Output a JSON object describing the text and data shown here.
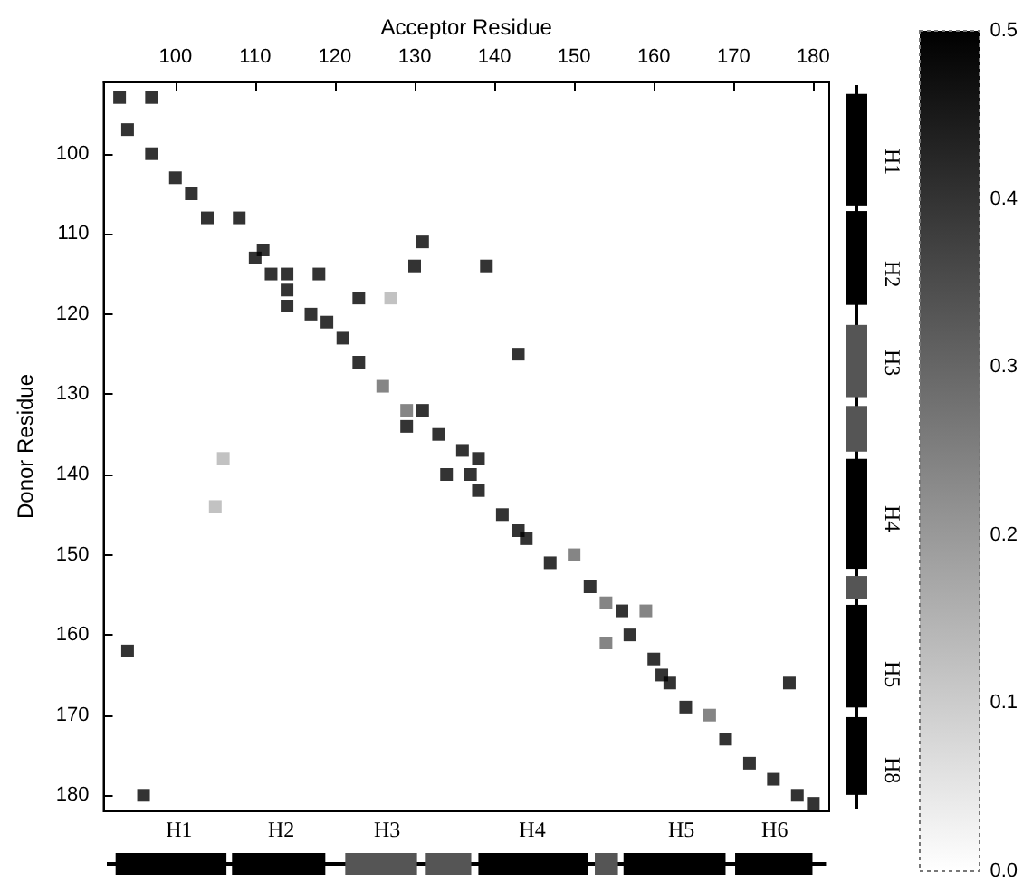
{
  "chart_data": {
    "type": "scatter",
    "xlabel": "Acceptor Residue",
    "ylabel": "Donor Residue",
    "xlim": [
      91,
      182
    ],
    "ylim": [
      182,
      91
    ],
    "xticks": [
      100,
      110,
      120,
      130,
      140,
      150,
      160,
      170,
      180
    ],
    "yticks": [
      100,
      110,
      120,
      130,
      140,
      150,
      160,
      170,
      180
    ],
    "clim": [
      0,
      0.5
    ],
    "cticks": [
      {
        "value": 0,
        "label": "0.0"
      },
      {
        "value": 0.1,
        "label": "0.1"
      },
      {
        "value": 0.2,
        "label": "0.2"
      },
      {
        "value": 0.3,
        "label": "0.3"
      },
      {
        "value": 0.4,
        "label": "0.4"
      },
      {
        "value": 0.5,
        "label": "0.5"
      }
    ],
    "x": [
      93,
      97,
      94,
      97,
      100,
      102,
      104,
      108,
      110,
      111,
      112,
      114,
      114,
      118,
      114,
      117,
      119,
      121,
      123,
      127,
      123,
      126,
      129,
      131,
      129,
      131,
      130,
      139,
      133,
      136,
      138,
      106,
      143,
      134,
      137,
      138,
      141,
      143,
      144,
      147,
      150,
      152,
      154,
      156,
      159,
      157,
      154,
      160,
      161,
      162,
      164,
      167,
      169,
      172,
      175,
      178,
      180,
      177,
      94,
      96,
      105
    ],
    "values": [
      93,
      93,
      97,
      100,
      103,
      105,
      108,
      108,
      113,
      112,
      115,
      115,
      117,
      115,
      119,
      120,
      121,
      123,
      118,
      118,
      126,
      129,
      132,
      132,
      134,
      111,
      114,
      114,
      135,
      137,
      138,
      138,
      125,
      140,
      140,
      142,
      145,
      147,
      148,
      151,
      150,
      154,
      156,
      157,
      157,
      160,
      161,
      163,
      165,
      166,
      169,
      170,
      173,
      176,
      178,
      180,
      181,
      166,
      162,
      180,
      144
    ],
    "cvalues": [
      0.5,
      0.5,
      0.5,
      0.5,
      0.5,
      0.5,
      0.5,
      0.5,
      0.5,
      0.5,
      0.5,
      0.5,
      0.5,
      0.5,
      0.5,
      0.5,
      0.5,
      0.5,
      0.5,
      0.15,
      0.5,
      0.3,
      0.3,
      0.5,
      0.5,
      0.5,
      0.5,
      0.5,
      0.5,
      0.5,
      0.5,
      0.15,
      0.5,
      0.5,
      0.5,
      0.5,
      0.5,
      0.5,
      0.5,
      0.5,
      0.3,
      0.5,
      0.3,
      0.5,
      0.3,
      0.5,
      0.3,
      0.5,
      0.5,
      0.5,
      0.5,
      0.3,
      0.5,
      0.5,
      0.5,
      0.5,
      0.5,
      0.5,
      0.5,
      0.5,
      0.15
    ],
    "marker": "square",
    "annotations": [
      "H1",
      "H2",
      "H3",
      "H4",
      "H5",
      "H6",
      "H1",
      "H2",
      "H3",
      "H4",
      "H5",
      "H8"
    ],
    "grid": false
  }
}
